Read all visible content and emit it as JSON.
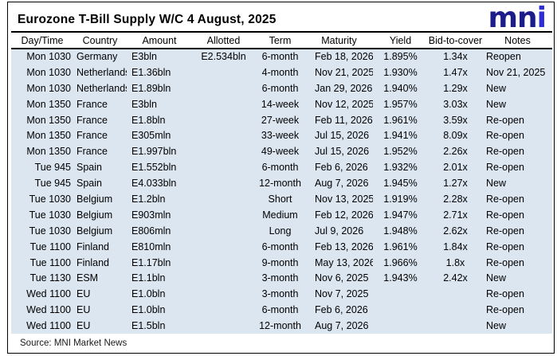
{
  "title": "Eurozone T-Bill Supply W/C 4 August, 2025",
  "logo": {
    "text_dark": "mn",
    "text_accent": "i"
  },
  "source": "Source: MNI Market News",
  "colors": {
    "row_background": "#dce6f1",
    "logo_dark": "#1c1c8a",
    "logo_accent": "#2e2ed6",
    "rule": "#000000"
  },
  "chart_data": {
    "type": "table",
    "title": "Eurozone T-Bill Supply W/C 4 August, 2025",
    "columns": [
      "Day/Time",
      "Country",
      "Amount",
      "Allotted",
      "Term",
      "Maturity",
      "Yield",
      "Bid-to-cover",
      "Notes"
    ],
    "rows": [
      [
        "Mon 1030",
        "Germany",
        "E3bln",
        "E2.534bln",
        "6-month",
        "Feb 18, 2026",
        "1.895%",
        "1.34x",
        "Reopen"
      ],
      [
        "Mon 1030",
        "Netherlands",
        "E1.36bln",
        "",
        "4-month",
        "Nov 21, 2025",
        "1.930%",
        "1.47x",
        "Nov 21, 2025"
      ],
      [
        "Mon 1030",
        "Netherlands",
        "E1.89bln",
        "",
        "6-month",
        "Jan 29, 2026",
        "1.940%",
        "1.29x",
        "New"
      ],
      [
        "Mon 1350",
        "France",
        "E3bln",
        "",
        "14-week",
        "Nov 12, 2025",
        "1.957%",
        "3.03x",
        "New"
      ],
      [
        "Mon 1350",
        "France",
        "E1.8bln",
        "",
        "27-week",
        "Feb 11, 2026",
        "1.961%",
        "3.59x",
        "Re-open"
      ],
      [
        "Mon 1350",
        "France",
        "E305mln",
        "",
        "33-week",
        "Jul 15, 2026",
        "1.941%",
        "8.09x",
        "Re-open"
      ],
      [
        "Mon 1350",
        "France",
        "E1.997bln",
        "",
        "49-week",
        "Jul 15, 2026",
        "1.952%",
        "2.26x",
        "Re-open"
      ],
      [
        "Tue 945",
        "Spain",
        "E1.552bln",
        "",
        "6-month",
        "Feb 6, 2026",
        "1.932%",
        "2.01x",
        "Re-open"
      ],
      [
        "Tue 945",
        "Spain",
        "E4.033bln",
        "",
        "12-month",
        "Aug 7, 2026",
        "1.945%",
        "1.27x",
        "New"
      ],
      [
        "Tue 1030",
        "Belgium",
        "E1.2bln",
        "",
        "Short",
        "Nov 13, 2025",
        "1.919%",
        "2.28x",
        "Re-open"
      ],
      [
        "Tue 1030",
        "Belgium",
        "E903mln",
        "",
        "Medium",
        "Feb 12, 2026",
        "1.947%",
        "2.71x",
        "Re-open"
      ],
      [
        "Tue 1030",
        "Belgium",
        "E806mln",
        "",
        "Long",
        "Jul 9, 2026",
        "1.948%",
        "2.62x",
        "Re-open"
      ],
      [
        "Tue 1100",
        "Finland",
        "E810mln",
        "",
        "6-month",
        "Feb 13, 2026",
        "1.961%",
        "1.84x",
        "Re-open"
      ],
      [
        "Tue 1100",
        "Finland",
        "E1.17bln",
        "",
        "9-month",
        "May 13, 2026",
        "1.966%",
        "1.8x",
        "Re-open"
      ],
      [
        "Tue 1130",
        "ESM",
        "E1.1bln",
        "",
        "3-month",
        "Nov 6, 2025",
        "1.943%",
        "2.42x",
        "New"
      ],
      [
        "Wed 1100",
        "EU",
        "E1.0bln",
        "",
        "3-month",
        "Nov 7, 2025",
        "",
        "",
        "Re-open"
      ],
      [
        "Wed 1100",
        "EU",
        "E1.0bln",
        "",
        "6-month",
        "Feb 6, 2026",
        "",
        "",
        "Re-open"
      ],
      [
        "Wed 1100",
        "EU",
        "E1.5bln",
        "",
        "12-month",
        "Aug 7, 2026",
        "",
        "",
        "New"
      ]
    ]
  }
}
